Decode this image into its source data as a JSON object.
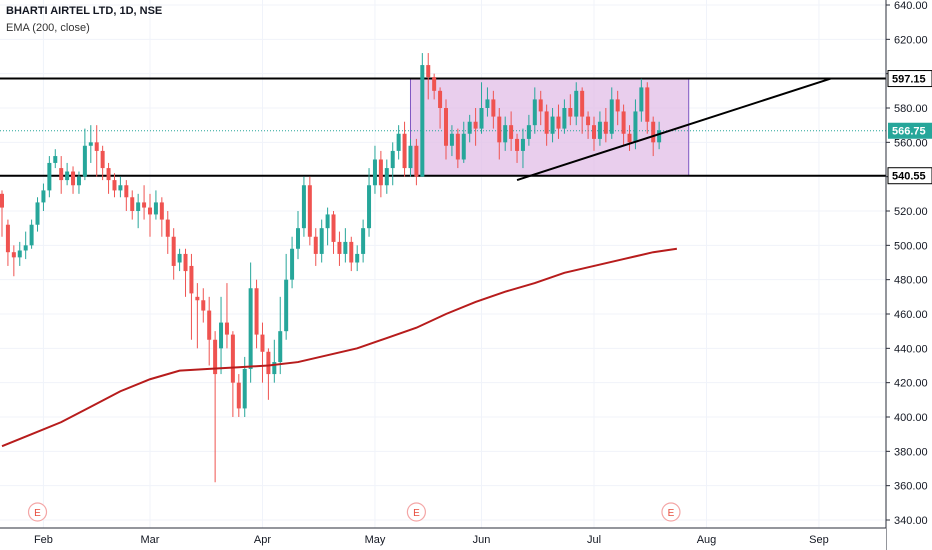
{
  "header": {
    "symbol": "BHARTI AIRTEL LTD, 1D, NSE",
    "indicator": "EMA (200, close)"
  },
  "colors": {
    "up": "#26a69a",
    "down": "#ef5350",
    "ema": "#b71c1c",
    "box_fill": "#e1bee7",
    "box_stroke": "#7e57c2",
    "last_price": "#26a69a",
    "grid": "#f0f3fa"
  },
  "chart_data": {
    "type": "candlestick",
    "title": "BHARTI AIRTEL LTD, 1D, NSE",
    "ylim": [
      340,
      640
    ],
    "y_ticks": [
      "640.00",
      "620.00",
      "600.00",
      "580.00",
      "560.00",
      "540.00",
      "520.00",
      "500.00",
      "480.00",
      "460.00",
      "440.00",
      "420.00",
      "400.00",
      "380.00",
      "360.00",
      "340.00"
    ],
    "x_ticks": [
      {
        "label": "Feb",
        "x": 7
      },
      {
        "label": "Mar",
        "x": 25
      },
      {
        "label": "Apr",
        "x": 44
      },
      {
        "label": "May",
        "x": 63
      },
      {
        "label": "Jun",
        "x": 81
      },
      {
        "label": "Jul",
        "x": 100
      },
      {
        "label": "Aug",
        "x": 119
      },
      {
        "label": "Sep",
        "x": 138
      }
    ],
    "price_labels": {
      "resistance": "597.15",
      "last": "566.75",
      "support": "540.55"
    },
    "levels": {
      "resistance": 597.15,
      "support": 540.55,
      "last": 566.75
    },
    "box": {
      "x0": 69,
      "x1": 116,
      "y0": 540.55,
      "y1": 597.15
    },
    "trendline": {
      "x0": 87,
      "y0": 538,
      "x1": 140,
      "y1": 597.15
    },
    "ema200": [
      [
        0,
        383
      ],
      [
        5,
        390
      ],
      [
        10,
        397
      ],
      [
        15,
        406
      ],
      [
        20,
        415
      ],
      [
        25,
        422
      ],
      [
        30,
        427
      ],
      [
        35,
        428
      ],
      [
        40,
        429
      ],
      [
        45,
        430
      ],
      [
        50,
        432
      ],
      [
        55,
        436
      ],
      [
        60,
        440
      ],
      [
        65,
        446
      ],
      [
        70,
        452
      ],
      [
        75,
        460
      ],
      [
        80,
        467
      ],
      [
        85,
        473
      ],
      [
        90,
        478
      ],
      [
        95,
        484
      ],
      [
        100,
        488
      ],
      [
        105,
        492
      ],
      [
        110,
        496
      ],
      [
        114,
        498
      ]
    ],
    "events": [
      {
        "label": "E",
        "x": 6
      },
      {
        "label": "E",
        "x": 70
      },
      {
        "label": "E",
        "x": 113
      }
    ],
    "candles": [
      [
        0,
        530,
        522,
        532,
        505
      ],
      [
        1,
        512,
        496,
        515,
        488
      ],
      [
        2,
        496,
        493,
        500,
        482
      ],
      [
        3,
        493,
        497,
        502,
        488
      ],
      [
        4,
        497,
        500,
        508,
        492
      ],
      [
        5,
        500,
        512,
        515,
        498
      ],
      [
        6,
        512,
        525,
        528,
        508
      ],
      [
        7,
        525,
        532,
        536,
        520
      ],
      [
        8,
        532,
        548,
        552,
        528
      ],
      [
        9,
        548,
        552,
        556,
        545
      ],
      [
        10,
        545,
        538,
        552,
        530
      ],
      [
        11,
        538,
        543,
        548,
        535
      ],
      [
        12,
        543,
        535,
        546,
        530
      ],
      [
        13,
        535,
        540,
        543,
        530
      ],
      [
        14,
        540,
        558,
        568,
        538
      ],
      [
        15,
        558,
        560,
        570,
        548
      ],
      [
        16,
        560,
        555,
        570,
        540
      ],
      [
        17,
        555,
        545,
        558,
        538
      ],
      [
        18,
        545,
        538,
        548,
        530
      ],
      [
        19,
        538,
        532,
        542,
        528
      ],
      [
        20,
        532,
        535,
        540,
        528
      ],
      [
        21,
        535,
        528,
        538,
        520
      ],
      [
        22,
        528,
        520,
        532,
        515
      ],
      [
        23,
        520,
        525,
        530,
        510
      ],
      [
        24,
        525,
        522,
        535,
        515
      ],
      [
        25,
        522,
        518,
        530,
        505
      ],
      [
        26,
        518,
        525,
        532,
        515
      ],
      [
        27,
        525,
        515,
        528,
        505
      ],
      [
        28,
        515,
        505,
        520,
        495
      ],
      [
        29,
        505,
        488,
        510,
        480
      ],
      [
        30,
        490,
        495,
        498,
        485
      ],
      [
        31,
        495,
        485,
        498,
        470
      ],
      [
        32,
        488,
        472,
        495,
        445
      ],
      [
        33,
        470,
        468,
        478,
        440
      ],
      [
        34,
        468,
        462,
        475,
        455
      ],
      [
        35,
        462,
        445,
        470,
        430
      ],
      [
        36,
        445,
        425,
        450,
        362
      ],
      [
        37,
        440,
        455,
        470,
        425
      ],
      [
        38,
        455,
        448,
        478,
        440
      ],
      [
        39,
        448,
        420,
        450,
        400
      ],
      [
        40,
        420,
        405,
        425,
        400
      ],
      [
        41,
        405,
        428,
        435,
        400
      ],
      [
        42,
        428,
        475,
        490,
        420
      ],
      [
        43,
        475,
        448,
        480,
        440
      ],
      [
        44,
        448,
        438,
        455,
        420
      ],
      [
        45,
        438,
        425,
        440,
        410
      ],
      [
        46,
        425,
        432,
        445,
        420
      ],
      [
        47,
        432,
        450,
        470,
        425
      ],
      [
        48,
        450,
        480,
        495,
        445
      ],
      [
        49,
        480,
        498,
        505,
        475
      ],
      [
        50,
        498,
        510,
        520,
        492
      ],
      [
        51,
        510,
        535,
        540,
        505
      ],
      [
        52,
        535,
        505,
        540,
        500
      ],
      [
        53,
        505,
        495,
        510,
        488
      ],
      [
        54,
        495,
        510,
        515,
        490
      ],
      [
        55,
        510,
        518,
        522,
        500
      ],
      [
        56,
        518,
        502,
        520,
        495
      ],
      [
        57,
        502,
        495,
        508,
        488
      ],
      [
        58,
        495,
        502,
        510,
        490
      ],
      [
        59,
        502,
        490,
        505,
        485
      ],
      [
        60,
        490,
        495,
        500,
        485
      ],
      [
        61,
        495,
        510,
        515,
        490
      ],
      [
        62,
        510,
        535,
        545,
        505
      ],
      [
        63,
        535,
        550,
        558,
        530
      ],
      [
        64,
        550,
        535,
        555,
        528
      ],
      [
        65,
        535,
        545,
        550,
        530
      ],
      [
        66,
        545,
        555,
        560,
        535
      ],
      [
        67,
        555,
        565,
        570,
        550
      ],
      [
        68,
        565,
        545,
        572,
        540
      ],
      [
        69,
        545,
        558,
        562,
        540
      ],
      [
        70,
        558,
        540,
        562,
        535
      ],
      [
        71,
        540,
        605,
        612,
        540
      ],
      [
        72,
        605,
        598,
        612,
        585
      ],
      [
        73,
        598,
        590,
        600,
        585
      ],
      [
        74,
        590,
        580,
        592,
        568
      ],
      [
        75,
        580,
        558,
        585,
        550
      ],
      [
        76,
        558,
        565,
        570,
        552
      ],
      [
        77,
        565,
        550,
        568,
        545
      ],
      [
        78,
        550,
        565,
        572,
        548
      ],
      [
        79,
        565,
        572,
        576,
        560
      ],
      [
        80,
        572,
        568,
        580,
        558
      ],
      [
        81,
        568,
        580,
        595,
        565
      ],
      [
        82,
        580,
        585,
        592,
        575
      ],
      [
        83,
        585,
        575,
        590,
        568
      ],
      [
        84,
        575,
        560,
        580,
        550
      ],
      [
        85,
        560,
        570,
        575,
        555
      ],
      [
        86,
        570,
        562,
        578,
        555
      ],
      [
        87,
        562,
        555,
        565,
        548
      ],
      [
        88,
        555,
        562,
        568,
        545
      ],
      [
        89,
        562,
        570,
        576,
        558
      ],
      [
        90,
        570,
        585,
        592,
        565
      ],
      [
        91,
        585,
        578,
        590,
        570
      ],
      [
        92,
        578,
        565,
        582,
        558
      ],
      [
        93,
        565,
        575,
        580,
        560
      ],
      [
        94,
        575,
        568,
        582,
        562
      ],
      [
        95,
        568,
        580,
        585,
        565
      ],
      [
        96,
        580,
        575,
        588,
        570
      ],
      [
        97,
        575,
        590,
        595,
        570
      ],
      [
        98,
        590,
        575,
        592,
        565
      ],
      [
        99,
        575,
        570,
        578,
        562
      ],
      [
        100,
        570,
        562,
        575,
        555
      ],
      [
        101,
        562,
        572,
        578,
        558
      ],
      [
        102,
        572,
        565,
        580,
        560
      ],
      [
        103,
        565,
        585,
        592,
        562
      ],
      [
        104,
        585,
        578,
        590,
        570
      ],
      [
        105,
        578,
        565,
        582,
        558
      ],
      [
        106,
        565,
        560,
        570,
        555
      ],
      [
        107,
        560,
        578,
        585,
        556
      ],
      [
        108,
        578,
        592,
        597,
        572
      ],
      [
        109,
        592,
        572,
        595,
        565
      ],
      [
        110,
        572,
        560,
        575,
        552
      ],
      [
        111,
        560,
        567,
        572,
        556
      ]
    ]
  }
}
